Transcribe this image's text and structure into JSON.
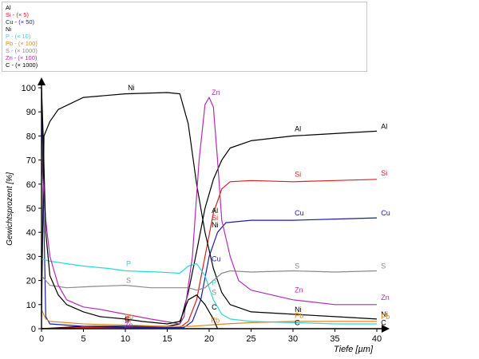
{
  "chart_data": {
    "type": "line",
    "xlabel": "Tiefe [µm]",
    "ylabel": "Gewichtsprozent [%]",
    "xlim": [
      0,
      40
    ],
    "ylim": [
      0,
      100
    ],
    "x_ticks": [
      0,
      5,
      10,
      15,
      20,
      25,
      30,
      35,
      40
    ],
    "y_ticks": [
      0,
      10,
      20,
      30,
      40,
      50,
      60,
      70,
      80,
      90,
      100
    ],
    "grid": false,
    "legend_position": "top-left",
    "series": [
      {
        "name": "Al",
        "legend": "Al",
        "color": "#000000",
        "points": [
          [
            0,
            0
          ],
          [
            5,
            1
          ],
          [
            10,
            1
          ],
          [
            15,
            1
          ],
          [
            16.5,
            2
          ],
          [
            17.5,
            15
          ],
          [
            18.5,
            32
          ],
          [
            19.5,
            50
          ],
          [
            20.5,
            62
          ],
          [
            21.5,
            70
          ],
          [
            22.5,
            75
          ],
          [
            25,
            78
          ],
          [
            30,
            80
          ],
          [
            35,
            81
          ],
          [
            40,
            82
          ]
        ],
        "labels": [
          {
            "x": 30.2,
            "y": 82,
            "text": "Al"
          },
          {
            "x": 20.3,
            "y": 48,
            "text": "Al"
          },
          {
            "x": 40.5,
            "y": 83,
            "text": "Al"
          }
        ]
      },
      {
        "name": "Si",
        "legend": "Si - (× 5)",
        "color": "#d62020",
        "points": [
          [
            0,
            0
          ],
          [
            5,
            0.5
          ],
          [
            10,
            0.5
          ],
          [
            16.5,
            0.5
          ],
          [
            17.5,
            3
          ],
          [
            18.5,
            12
          ],
          [
            19.5,
            30
          ],
          [
            20.5,
            48
          ],
          [
            21.5,
            58
          ],
          [
            22.5,
            61
          ],
          [
            25,
            61.5
          ],
          [
            30,
            61
          ],
          [
            35,
            61.5
          ],
          [
            40,
            62
          ]
        ],
        "labels": [
          {
            "x": 30.2,
            "y": 63,
            "text": "Si"
          },
          {
            "x": 20.3,
            "y": 45,
            "text": "Si"
          },
          {
            "x": 40.5,
            "y": 63.5,
            "text": "Si"
          },
          {
            "x": 9.9,
            "y": 2.5,
            "text": "Si"
          }
        ]
      },
      {
        "name": "Cu",
        "legend": "Cu - (× 50)",
        "color": "#1c1ca8",
        "points": [
          [
            0,
            100
          ],
          [
            0.2,
            60
          ],
          [
            0.5,
            5
          ],
          [
            1,
            2
          ],
          [
            5,
            1
          ],
          [
            10,
            0.5
          ],
          [
            17,
            0.5
          ],
          [
            18,
            3
          ],
          [
            19,
            12
          ],
          [
            20,
            30
          ],
          [
            21,
            40
          ],
          [
            22,
            44
          ],
          [
            25,
            45
          ],
          [
            30,
            45
          ],
          [
            35,
            45.5
          ],
          [
            40,
            46
          ]
        ],
        "labels": [
          {
            "x": 30.2,
            "y": 47,
            "text": "Cu"
          },
          {
            "x": 20.3,
            "y": 28,
            "text": "Cu"
          },
          {
            "x": 40.5,
            "y": 47,
            "text": "Cu"
          }
        ]
      },
      {
        "name": "Ni",
        "legend": "Ni",
        "color": "#000000",
        "points": [
          [
            0,
            5
          ],
          [
            0.3,
            80
          ],
          [
            1,
            86
          ],
          [
            2,
            91
          ],
          [
            5,
            96
          ],
          [
            10,
            97.5
          ],
          [
            15,
            98
          ],
          [
            16.5,
            97.5
          ],
          [
            17.5,
            85
          ],
          [
            18.5,
            60
          ],
          [
            19.5,
            40
          ],
          [
            20.5,
            25
          ],
          [
            21.5,
            15
          ],
          [
            22.5,
            10
          ],
          [
            25,
            7
          ],
          [
            30,
            6
          ],
          [
            35,
            5
          ],
          [
            40,
            4
          ]
        ],
        "labels": [
          {
            "x": 10.3,
            "y": 99,
            "text": "Ni"
          },
          {
            "x": 20.3,
            "y": 42,
            "text": "Ni"
          },
          {
            "x": 30.2,
            "y": 7,
            "text": "Ni"
          },
          {
            "x": 40.5,
            "y": 5,
            "text": "Ni"
          }
        ]
      },
      {
        "name": "P",
        "legend": "P - (× 10)",
        "color": "#27dada",
        "points": [
          [
            0,
            29
          ],
          [
            1,
            28
          ],
          [
            3,
            27
          ],
          [
            5,
            26
          ],
          [
            8,
            25
          ],
          [
            10,
            24
          ],
          [
            14,
            23.5
          ],
          [
            16.5,
            23
          ],
          [
            17.5,
            26
          ],
          [
            18.5,
            27
          ],
          [
            19.5,
            22
          ],
          [
            20.5,
            12
          ],
          [
            21.5,
            6
          ],
          [
            22.5,
            4
          ],
          [
            25,
            3
          ],
          [
            30,
            2.5
          ],
          [
            35,
            2
          ],
          [
            40,
            2
          ]
        ],
        "labels": [
          {
            "x": 10.1,
            "y": 26,
            "text": "P"
          },
          {
            "x": 20.3,
            "y": 18,
            "text": "P"
          }
        ]
      },
      {
        "name": "Pb",
        "legend": "Pb - (× 100)",
        "color": "#e08a20",
        "points": [
          [
            0,
            8
          ],
          [
            0.5,
            4
          ],
          [
            1,
            3
          ],
          [
            5,
            2
          ],
          [
            10,
            1.5
          ],
          [
            15,
            1
          ],
          [
            18,
            1
          ],
          [
            20,
            1.5
          ],
          [
            22,
            2
          ],
          [
            25,
            2.5
          ],
          [
            30,
            3
          ],
          [
            35,
            3
          ],
          [
            40,
            3
          ]
        ],
        "labels": [
          {
            "x": 9.9,
            "y": 4,
            "text": "Pb"
          },
          {
            "x": 20.2,
            "y": 2.5,
            "text": "Pb"
          },
          {
            "x": 30.2,
            "y": 4.5,
            "text": "Pb"
          },
          {
            "x": 40.5,
            "y": 4,
            "text": "Pb"
          }
        ]
      },
      {
        "name": "S",
        "legend": "S - (× 1000)",
        "color": "#8a8a8a",
        "points": [
          [
            0,
            22
          ],
          [
            0.5,
            20
          ],
          [
            1,
            18
          ],
          [
            3,
            17
          ],
          [
            6,
            17.5
          ],
          [
            10,
            18
          ],
          [
            13,
            17
          ],
          [
            16.5,
            17
          ],
          [
            17.5,
            17
          ],
          [
            18.5,
            16
          ],
          [
            19.5,
            17
          ],
          [
            20.5,
            20
          ],
          [
            21.5,
            23
          ],
          [
            22.5,
            24
          ],
          [
            25,
            23.5
          ],
          [
            30,
            24
          ],
          [
            35,
            23.5
          ],
          [
            40,
            24
          ]
        ],
        "labels": [
          {
            "x": 10.1,
            "y": 19,
            "text": "S"
          },
          {
            "x": 20.3,
            "y": 14,
            "text": "S"
          },
          {
            "x": 30.2,
            "y": 25,
            "text": "S"
          },
          {
            "x": 40.5,
            "y": 25,
            "text": "S"
          }
        ]
      },
      {
        "name": "Zn",
        "legend": "Zn - (× 100)",
        "color": "#b52bb5",
        "points": [
          [
            0,
            70
          ],
          [
            0.5,
            45
          ],
          [
            1,
            30
          ],
          [
            2,
            18
          ],
          [
            3,
            12
          ],
          [
            5,
            9
          ],
          [
            7,
            8
          ],
          [
            10,
            6
          ],
          [
            13,
            4
          ],
          [
            16.5,
            2
          ],
          [
            17,
            5
          ],
          [
            18,
            30
          ],
          [
            18.8,
            70
          ],
          [
            19.5,
            93
          ],
          [
            20,
            96
          ],
          [
            20.5,
            92
          ],
          [
            21,
            70
          ],
          [
            21.5,
            45
          ],
          [
            22.5,
            30
          ],
          [
            23.5,
            20
          ],
          [
            25,
            16
          ],
          [
            30,
            12
          ],
          [
            35,
            10
          ],
          [
            40,
            10
          ]
        ],
        "labels": [
          {
            "x": 20.3,
            "y": 97,
            "text": "Zn"
          },
          {
            "x": 30.2,
            "y": 15,
            "text": "Zn"
          },
          {
            "x": 40.5,
            "y": 12,
            "text": "Zn"
          },
          {
            "x": 9.9,
            "y": 0.5,
            "text": "Zn"
          }
        ]
      },
      {
        "name": "C",
        "legend": "C - (× 1000)",
        "color": "#000000",
        "points": [
          [
            0,
            100
          ],
          [
            0.2,
            80
          ],
          [
            0.5,
            40
          ],
          [
            1,
            22
          ],
          [
            2,
            14
          ],
          [
            3,
            10
          ],
          [
            5,
            7
          ],
          [
            7,
            5
          ],
          [
            10,
            4
          ],
          [
            12,
            3
          ],
          [
            15,
            2
          ],
          [
            16.5,
            3
          ],
          [
            17.5,
            12
          ],
          [
            18.5,
            14
          ],
          [
            19.5,
            10
          ],
          [
            20.5,
            4
          ],
          [
            21,
            0
          ]
        ],
        "labels": [
          {
            "x": 9.9,
            "y": 3,
            "text": "C"
          },
          {
            "x": 20.3,
            "y": 8,
            "text": "C"
          },
          {
            "x": 30.2,
            "y": 1.5,
            "text": "C"
          },
          {
            "x": 40.5,
            "y": 1.5,
            "text": "C"
          }
        ]
      }
    ]
  }
}
